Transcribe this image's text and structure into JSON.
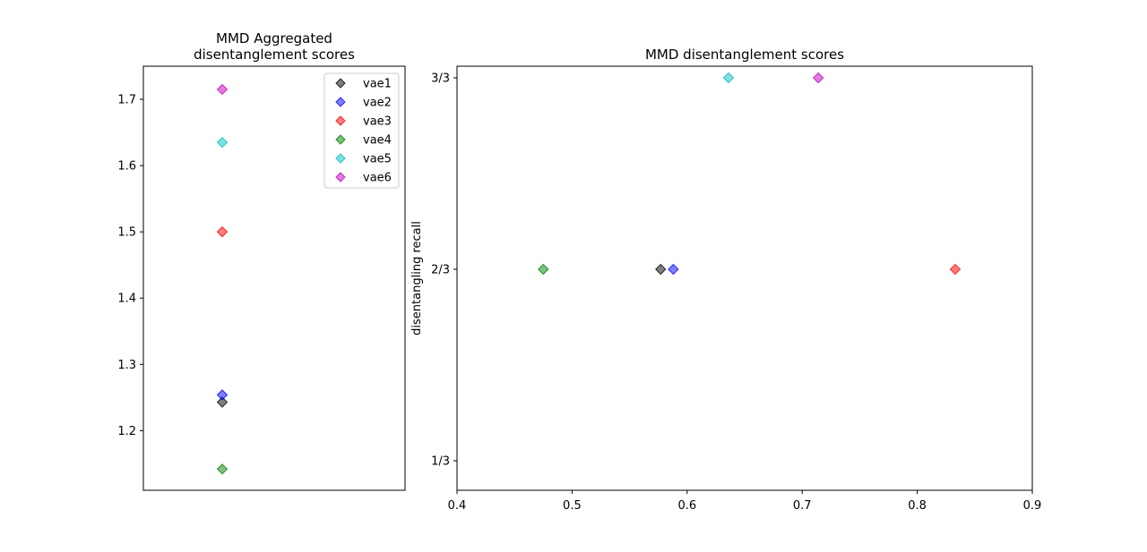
{
  "chart_data": [
    {
      "type": "scatter",
      "title_line1": "MMD Aggregated",
      "title_line2": "disentanglement scores",
      "xlabel": "",
      "ylabel": "",
      "ylim": [
        1.11,
        1.75
      ],
      "yticks": [
        "1.2",
        "1.3",
        "1.4",
        "1.5",
        "1.6",
        "1.7"
      ],
      "grid": false,
      "legend": "top-right",
      "marker": "diamond",
      "series": [
        {
          "name": "vae1",
          "color": "#000000",
          "x": 0,
          "y": 1.243
        },
        {
          "name": "vae2",
          "color": "#0000ff",
          "x": 0,
          "y": 1.254
        },
        {
          "name": "vae3",
          "color": "#ff0000",
          "x": 0,
          "y": 1.5
        },
        {
          "name": "vae4",
          "color": "#008000",
          "x": 0,
          "y": 1.142
        },
        {
          "name": "vae5",
          "color": "#00bfbf",
          "x": 0,
          "y": 1.635
        },
        {
          "name": "vae6",
          "color": "#bf00bf",
          "x": 0,
          "y": 1.715
        }
      ]
    },
    {
      "type": "scatter",
      "title": "MMD disentanglement scores",
      "xlabel": "",
      "ylabel": "disentangling recall",
      "xlim": [
        0.4,
        0.9
      ],
      "xticks": [
        "0.4",
        "0.5",
        "0.6",
        "0.7",
        "0.8",
        "0.9"
      ],
      "yticks": [
        "1/3",
        "2/3",
        "3/3"
      ],
      "grid": false,
      "marker": "diamond",
      "series": [
        {
          "name": "vae1",
          "color": "#000000",
          "x": 0.577,
          "y": 2
        },
        {
          "name": "vae2",
          "color": "#0000ff",
          "x": 0.588,
          "y": 2
        },
        {
          "name": "vae3",
          "color": "#ff0000",
          "x": 0.833,
          "y": 2
        },
        {
          "name": "vae4",
          "color": "#008000",
          "x": 0.475,
          "y": 2
        },
        {
          "name": "vae5",
          "color": "#00bfbf",
          "x": 0.636,
          "y": 3
        },
        {
          "name": "vae6",
          "color": "#bf00bf",
          "x": 0.714,
          "y": 3
        }
      ]
    }
  ]
}
